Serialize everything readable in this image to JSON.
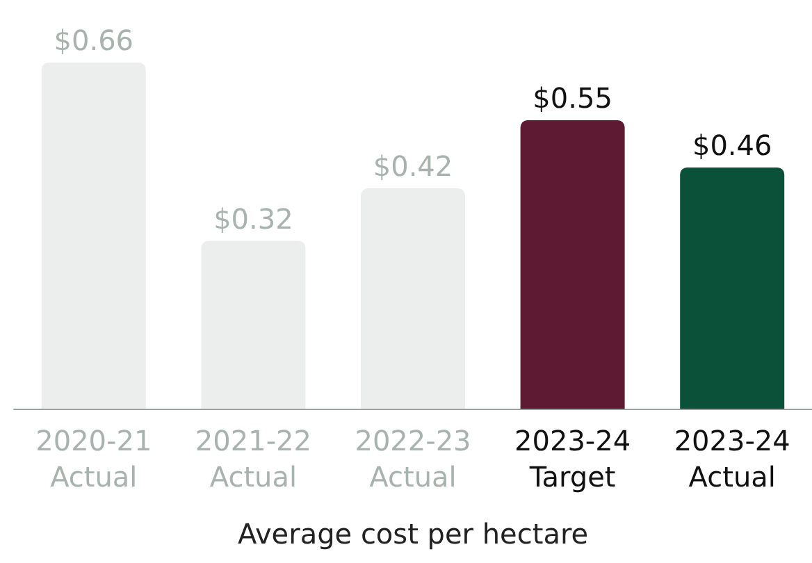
{
  "chart_data": {
    "type": "bar",
    "xlabel": "Average cost per hectare",
    "categories": [
      "2020-21\nActual",
      "2021-22\nActual",
      "2022-23\nActual",
      "2023-24\nTarget",
      "2023-24\nActual"
    ],
    "values": [
      0.66,
      0.32,
      0.42,
      0.55,
      0.46
    ],
    "colors": [
      "#eceeed",
      "#eceeed",
      "#eceeed",
      "#5e1a33",
      "#0b5039"
    ],
    "value_labels": [
      "$0.66",
      "$0.32",
      "$0.42",
      "$0.55",
      "$0.46"
    ]
  }
}
